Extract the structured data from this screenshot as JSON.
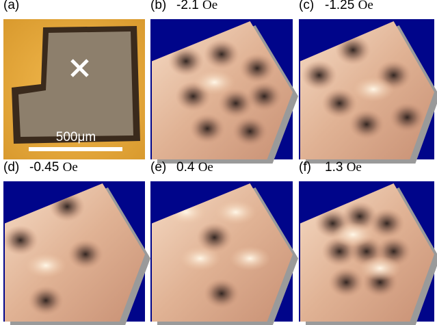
{
  "panels": [
    {
      "label": "(a)",
      "scale_bar": "500μm"
    },
    {
      "label": "(b)",
      "field": "-2.1",
      "unit": "Oe"
    },
    {
      "label": "(c)",
      "field": "-1.25",
      "unit": "Oe"
    },
    {
      "label": "(d)",
      "field": "-0.45",
      "unit": "Oe"
    },
    {
      "label": "(e)",
      "field": "0.4",
      "unit": "Oe"
    },
    {
      "label": "(f)",
      "field": "1.3",
      "unit": "Oe"
    }
  ]
}
